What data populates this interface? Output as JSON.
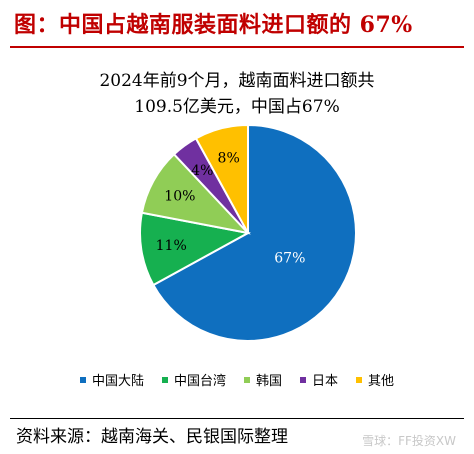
{
  "header": {
    "title": "图：中国占越南服装面料进口额的 67%"
  },
  "chart_data": {
    "type": "pie",
    "subtitle_line1": "2024年前9个月，越南面料进口额共",
    "subtitle_line2": "109.5亿美元，中国占67%",
    "slices": [
      {
        "label": "中国大陆",
        "value": 67,
        "display": "67%",
        "color": "#0f6fbf",
        "text_color": "#ffffff"
      },
      {
        "label": "中国台湾",
        "value": 11,
        "display": "11%",
        "color": "#16b050",
        "text_color": "#000000"
      },
      {
        "label": "韩国",
        "value": 10,
        "display": "10%",
        "color": "#90cd56",
        "text_color": "#000000"
      },
      {
        "label": "日本",
        "value": 4,
        "display": "4%",
        "color": "#7030a0",
        "text_color": "#000000"
      },
      {
        "label": "其他",
        "value": 8,
        "display": "8%",
        "color": "#ffc000",
        "text_color": "#000000"
      }
    ],
    "start_angle_deg": 0,
    "legend_position": "bottom"
  },
  "footer": {
    "source": "资料来源：越南海关、民银国际整理",
    "watermark": "雪球：FF投资XW"
  }
}
